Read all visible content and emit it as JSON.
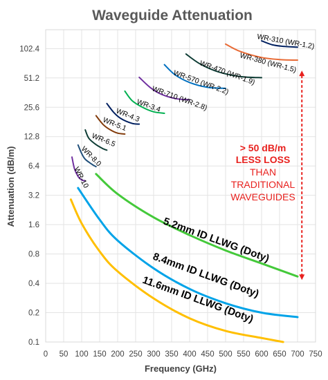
{
  "chart_data": {
    "type": "line",
    "title": "Waveguide Attenuation",
    "xlabel": "Frequency (GHz)",
    "ylabel": "Attenuation (dB/m)",
    "x_ticks": [
      0,
      50,
      100,
      150,
      200,
      250,
      300,
      350,
      400,
      450,
      500,
      550,
      600,
      650,
      700,
      750
    ],
    "y_ticks": [
      "0.1",
      "0.2",
      "0.4",
      "0.8",
      "1.6",
      "3.2",
      "6.4",
      "12.8",
      "25.6",
      "51.2",
      "102.4"
    ],
    "y_tick_values": [
      0.1,
      0.2,
      0.4,
      0.8,
      1.6,
      3.2,
      6.4,
      12.8,
      25.6,
      51.2,
      102.4
    ],
    "xlim": [
      0,
      750
    ],
    "ylim": [
      0.1,
      160
    ],
    "yscale": "log2",
    "grid": true,
    "series": [
      {
        "name": "WR-10",
        "color": "#7030a0",
        "x": [
          73,
          80,
          90,
          100,
          110
        ],
        "y": [
          7.9,
          6.0,
          5.0,
          4.6,
          4.5
        ]
      },
      {
        "name": "WR-8.0",
        "color": "#1f4e79",
        "x": [
          90,
          100,
          110,
          130,
          140
        ],
        "y": [
          10.5,
          8.6,
          7.5,
          6.6,
          6.3
        ]
      },
      {
        "name": "WR-6.5",
        "color": "#0d3c34",
        "x": [
          110,
          120,
          140,
          160,
          170
        ],
        "y": [
          15.0,
          12.3,
          10.6,
          9.6,
          9.3
        ]
      },
      {
        "name": "WR-5.1",
        "color": "#833c0c",
        "x": [
          140,
          160,
          180,
          200,
          220
        ],
        "y": [
          21.0,
          17.0,
          15.0,
          13.9,
          13.6
        ]
      },
      {
        "name": "WR-4.3",
        "color": "#002060",
        "x": [
          170,
          190,
          210,
          240,
          260
        ],
        "y": [
          28.0,
          22.5,
          19.5,
          17.5,
          17.2
        ]
      },
      {
        "name": "WR-3.4",
        "color": "#00b050",
        "x": [
          220,
          240,
          270,
          300,
          330
        ],
        "y": [
          37.5,
          30.0,
          25.5,
          23.0,
          22.2
        ]
      },
      {
        "name": "WR-2.8",
        "color": "#7030a0",
        "x": [
          260,
          290,
          320,
          360,
          400
        ],
        "y": [
          52.0,
          41.0,
          35.0,
          31.5,
          30.5
        ]
      },
      {
        "name": "WR-2.2",
        "color": "#0070c0",
        "x": [
          330,
          360,
          400,
          450,
          500
        ],
        "y": [
          70.0,
          55.0,
          46.0,
          41.0,
          40.0
        ]
      },
      {
        "name": "WR-1.9",
        "color": "#0d3c34",
        "x": [
          390,
          430,
          480,
          540,
          600
        ],
        "y": [
          90.0,
          71.0,
          59.0,
          53.0,
          51.5
        ]
      },
      {
        "name": "WR-1.5",
        "color": "#e86a35",
        "x": [
          500,
          540,
          600,
          650,
          700
        ],
        "y": [
          114.0,
          96.0,
          83.0,
          79.0,
          78.0
        ]
      },
      {
        "name": "WR-1.2",
        "color": "#002060",
        "x": [
          600,
          630,
          660,
          700
        ],
        "y": [
          123.0,
          112.0,
          108.0,
          106.0
        ]
      },
      {
        "name": "5.2mm ID LLWG (Doty)",
        "color": "#44c93a",
        "x": [
          140,
          200,
          300,
          400,
          500,
          600,
          700
        ],
        "y": [
          5.3,
          3.3,
          1.9,
          1.25,
          0.87,
          0.64,
          0.47
        ]
      },
      {
        "name": "8.4mm ID LLWG (Doty)",
        "color": "#00a3e8",
        "x": [
          90,
          150,
          200,
          300,
          400,
          500,
          600,
          700
        ],
        "y": [
          3.8,
          1.8,
          1.1,
          0.57,
          0.35,
          0.25,
          0.2,
          0.18
        ]
      },
      {
        "name": "11.6mm ID LLWG (Doty)",
        "color": "#ffbf00",
        "x": [
          70,
          100,
          150,
          200,
          300,
          400,
          500,
          600,
          660
        ],
        "y": [
          2.9,
          1.65,
          0.85,
          0.53,
          0.28,
          0.175,
          0.13,
          0.11,
          0.1
        ]
      }
    ],
    "curve_labels": [
      "WR-10",
      "WR-8.0",
      "WR-6.5",
      "WR-5.1",
      "WR-4.3",
      "WR-3.4",
      "WR-710 (WR-2.8)",
      "WR-570 (WR-2.2)",
      "WR-470 (WR-1.9)",
      "WR-380 (WR-1.5)",
      "WR-310 (WR-1.2)"
    ],
    "llwg_labels": [
      "5.2mm ID LLWG (Doty)",
      "8.4mm ID LLWG (Doty)",
      "11.6mm ID LLWG (Doty)"
    ],
    "annotation": {
      "lines": [
        "> 50 dB/m",
        "LESS LOSS",
        "THAN",
        "TRADITIONAL",
        "WAVEGUIDES"
      ],
      "color": "#e8211e",
      "arrow": {
        "x": 712,
        "y_from": 0.44,
        "y_to": 60
      }
    }
  }
}
